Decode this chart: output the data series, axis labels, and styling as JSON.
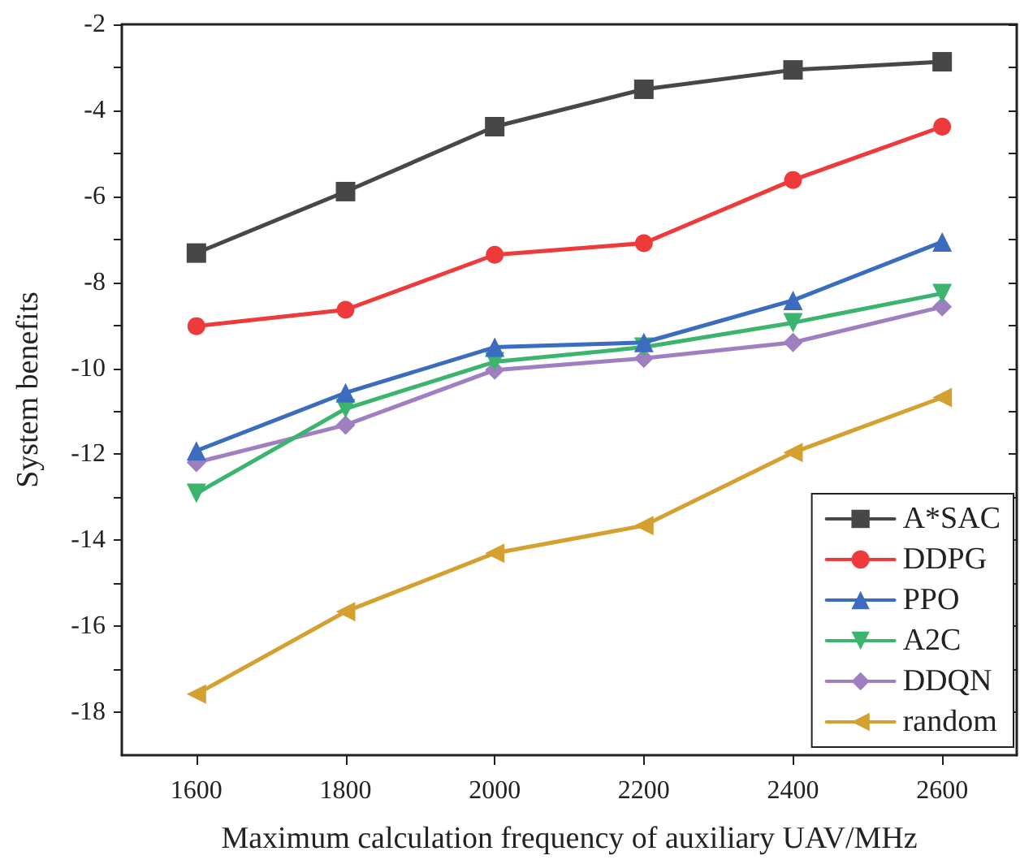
{
  "chart_data": {
    "type": "line",
    "xlabel": "Maximum calculation frequency of auxiliary UAV/MHz",
    "ylabel": "System benefits",
    "x": [
      1600,
      1800,
      2000,
      2200,
      2400,
      2600
    ],
    "xlim": [
      1500,
      2700
    ],
    "xticks": [
      1600,
      1800,
      2000,
      2200,
      2400,
      2600
    ],
    "ylim": [
      -19,
      -2
    ],
    "yticks": [
      -18,
      -16,
      -14,
      -12,
      -10,
      -8,
      -6,
      -4,
      -2
    ],
    "grid": false,
    "legend": "bottom right",
    "line_style": "solid",
    "series": [
      {
        "name": "A*SAC",
        "color": "#474747",
        "marker": "square",
        "values": [
          -7.32,
          -5.89,
          -4.38,
          -3.51,
          -3.06,
          -2.87
        ]
      },
      {
        "name": "DDPG",
        "color": "#ee3a3a",
        "marker": "circle",
        "values": [
          -9.02,
          -8.64,
          -7.36,
          -7.09,
          -5.62,
          -4.38
        ]
      },
      {
        "name": "PPO",
        "color": "#3b6cc0",
        "marker": "triangle",
        "values": [
          -11.92,
          -10.57,
          -9.51,
          -9.4,
          -8.42,
          -7.06
        ]
      },
      {
        "name": "A2C",
        "color": "#3bb46e",
        "marker": "triangle-down",
        "values": [
          -12.91,
          -10.94,
          -9.85,
          -9.51,
          -8.94,
          -8.26
        ]
      },
      {
        "name": "DDQN",
        "color": "#a07fc0",
        "marker": "diamond",
        "values": [
          -12.19,
          -11.32,
          -10.04,
          -9.77,
          -9.4,
          -8.57
        ]
      },
      {
        "name": "random",
        "color": "#d4a030",
        "marker": "triangle-left",
        "values": [
          -17.58,
          -15.66,
          -14.3,
          -13.66,
          -11.96,
          -10.68
        ]
      }
    ]
  }
}
